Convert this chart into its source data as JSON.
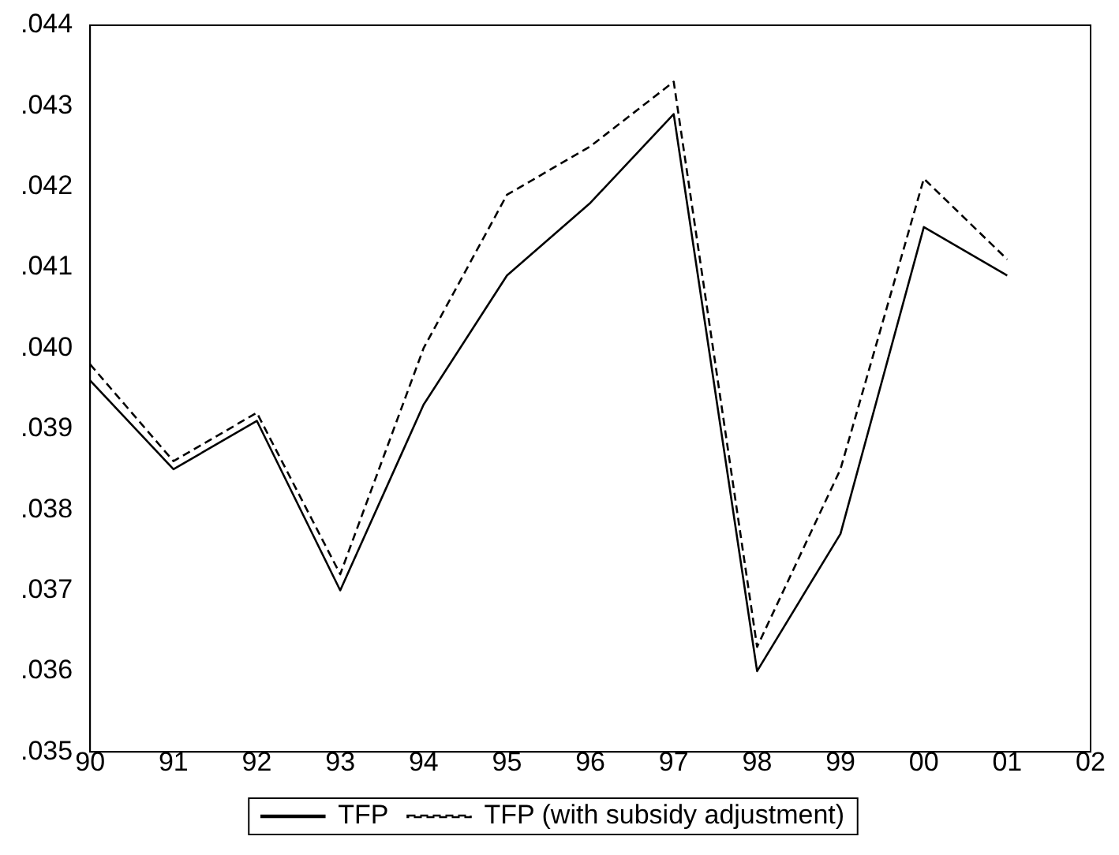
{
  "chart_data": {
    "type": "line",
    "categories": [
      "90",
      "91",
      "92",
      "93",
      "94",
      "95",
      "96",
      "97",
      "98",
      "99",
      "00",
      "01",
      "02"
    ],
    "series": [
      {
        "name": "TFP",
        "color": "#000000",
        "line_style": "solid",
        "values": [
          0.0396,
          0.0385,
          0.0391,
          0.037,
          0.0393,
          0.0409,
          0.0418,
          0.0429,
          0.036,
          0.0377,
          0.0415,
          0.0409,
          null
        ]
      },
      {
        "name": "TFP (with subsidy adjustment)",
        "color": "#000000",
        "line_style": "dashed",
        "values": [
          0.0398,
          0.0386,
          0.0392,
          0.0372,
          0.04,
          0.0419,
          0.0425,
          0.0433,
          0.0363,
          0.0385,
          0.0421,
          0.0411,
          null
        ]
      }
    ],
    "ylim": [
      0.035,
      0.044
    ],
    "yticks": [
      {
        "value": 0.035,
        "label": ".035"
      },
      {
        "value": 0.036,
        "label": ".036"
      },
      {
        "value": 0.037,
        "label": ".037"
      },
      {
        "value": 0.038,
        "label": ".038"
      },
      {
        "value": 0.039,
        "label": ".039"
      },
      {
        "value": 0.04,
        "label": ".040"
      },
      {
        "value": 0.041,
        "label": ".041"
      },
      {
        "value": 0.042,
        "label": ".042"
      },
      {
        "value": 0.043,
        "label": ".043"
      },
      {
        "value": 0.044,
        "label": ".044"
      }
    ],
    "grid": false,
    "legend": "bottom",
    "marker": "none"
  }
}
